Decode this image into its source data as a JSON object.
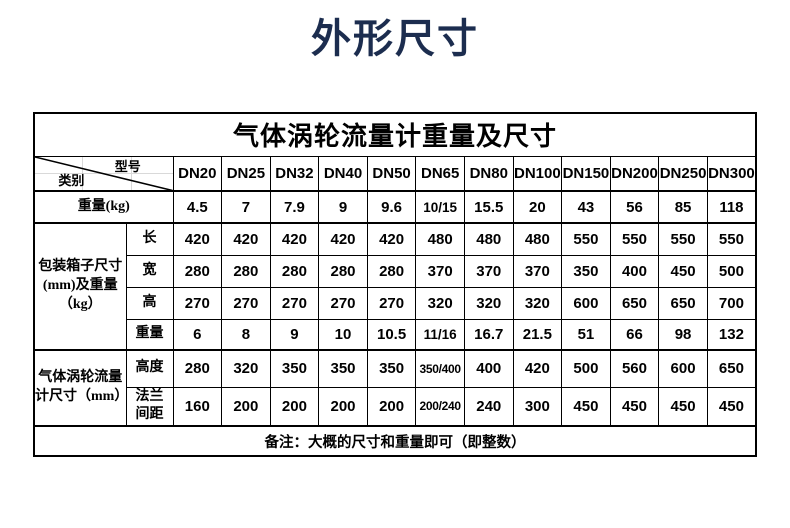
{
  "page_title": "外形尺寸",
  "accent_color": "#1c2d4f",
  "table": {
    "title": "气体涡轮流量计重量及尺寸",
    "corner": {
      "model": "型号",
      "category": "类别"
    },
    "columns": [
      "DN20",
      "DN25",
      "DN32",
      "DN40",
      "DN50",
      "DN65",
      "DN80",
      "DN100",
      "DN150",
      "DN200",
      "DN250",
      "DN300"
    ],
    "weight_row": {
      "label": "重量(kg)",
      "values": [
        "4.5",
        "7",
        "7.9",
        "9",
        "9.6",
        "10/15",
        "15.5",
        "20",
        "43",
        "56",
        "85",
        "118"
      ]
    },
    "groups": [
      {
        "label": "包装箱子尺寸\n(mm)及重量\n（kg）",
        "rows": [
          {
            "label": "长",
            "values": [
              "420",
              "420",
              "420",
              "420",
              "420",
              "480",
              "480",
              "480",
              "550",
              "550",
              "550",
              "550"
            ]
          },
          {
            "label": "宽",
            "values": [
              "280",
              "280",
              "280",
              "280",
              "280",
              "370",
              "370",
              "370",
              "350",
              "400",
              "450",
              "500"
            ]
          },
          {
            "label": "高",
            "values": [
              "270",
              "270",
              "270",
              "270",
              "270",
              "320",
              "320",
              "320",
              "600",
              "650",
              "650",
              "700"
            ]
          },
          {
            "label": "重量",
            "values": [
              "6",
              "8",
              "9",
              "10",
              "10.5",
              "11/16",
              "16.7",
              "21.5",
              "51",
              "66",
              "98",
              "132"
            ]
          }
        ]
      },
      {
        "label": "气体涡轮流量\n计尺寸（mm）",
        "rows": [
          {
            "label": "高度",
            "values": [
              "280",
              "320",
              "350",
              "350",
              "350",
              "350/400",
              "400",
              "420",
              "500",
              "560",
              "600",
              "650"
            ]
          },
          {
            "label": "法兰\n间距",
            "values": [
              "160",
              "200",
              "200",
              "200",
              "200",
              "200/240",
              "240",
              "300",
              "450",
              "450",
              "450",
              "450"
            ]
          }
        ]
      }
    ],
    "note": "备注：大概的尺寸和重量即可（即整数）"
  }
}
